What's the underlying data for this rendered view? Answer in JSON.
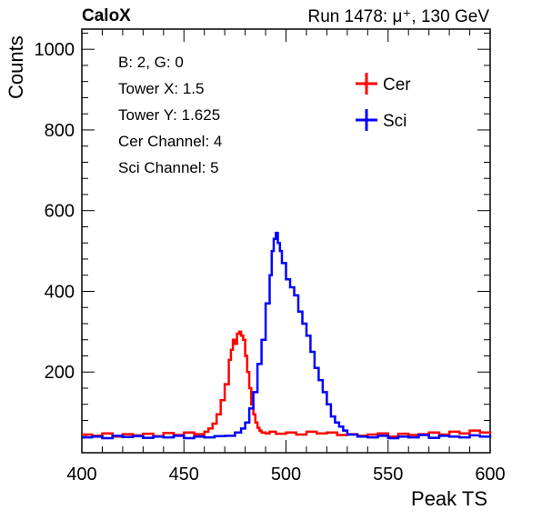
{
  "header": {
    "left": "CaloX",
    "right": "Run 1478:   μ⁺, 130 GeV"
  },
  "info_lines": [
    "B: 2, G: 0",
    "Tower X: 1.5",
    "Tower Y: 1.625",
    "Cer Channel: 4",
    "Sci Channel: 5"
  ],
  "colors": {
    "cer": "#ff0000",
    "sci": "#0000ff"
  },
  "chart_data": {
    "type": "line",
    "title": "",
    "xlabel": "Peak TS",
    "ylabel": "Counts",
    "xlim": [
      400,
      600
    ],
    "ylim": [
      0,
      1050
    ],
    "xticks": [
      400,
      450,
      500,
      550,
      600
    ],
    "yticks": [
      200,
      400,
      600,
      800,
      1000
    ],
    "grid": false,
    "legend": "top-right",
    "series": [
      {
        "name": "Cer",
        "x": [
          400,
          405,
          410,
          415,
          420,
          425,
          430,
          435,
          440,
          445,
          450,
          455,
          460,
          462,
          464,
          466,
          468,
          470,
          472,
          473,
          474,
          475,
          476,
          477,
          478,
          479,
          480,
          481,
          482,
          483,
          484,
          485,
          486,
          487,
          488,
          490,
          492,
          495,
          500,
          505,
          510,
          515,
          520,
          525,
          530,
          535,
          540,
          545,
          550,
          555,
          560,
          565,
          570,
          575,
          580,
          585,
          590,
          595,
          600
        ],
        "y": [
          45,
          42,
          48,
          40,
          46,
          43,
          47,
          41,
          49,
          44,
          50,
          46,
          52,
          60,
          72,
          95,
          130,
          170,
          230,
          255,
          280,
          270,
          295,
          300,
          290,
          280,
          240,
          200,
          160,
          120,
          95,
          75,
          62,
          55,
          50,
          48,
          52,
          47,
          50,
          45,
          52,
          48,
          50,
          44,
          46,
          42,
          45,
          48,
          40,
          47,
          44,
          46,
          50,
          45,
          52,
          48,
          55,
          50,
          52
        ]
      },
      {
        "name": "Sci",
        "x": [
          400,
          405,
          410,
          415,
          420,
          425,
          430,
          435,
          440,
          445,
          450,
          455,
          460,
          465,
          470,
          475,
          478,
          480,
          482,
          484,
          486,
          488,
          490,
          492,
          493,
          494,
          495,
          496,
          497,
          498,
          500,
          502,
          504,
          506,
          508,
          510,
          512,
          514,
          516,
          518,
          520,
          522,
          524,
          526,
          528,
          530,
          535,
          540,
          545,
          550,
          555,
          560,
          565,
          570,
          575,
          580,
          585,
          590,
          595,
          600
        ],
        "y": [
          38,
          40,
          36,
          42,
          39,
          41,
          37,
          40,
          38,
          42,
          36,
          40,
          38,
          41,
          42,
          50,
          60,
          75,
          110,
          150,
          220,
          280,
          370,
          440,
          500,
          530,
          545,
          520,
          500,
          470,
          430,
          410,
          390,
          350,
          320,
          290,
          250,
          210,
          180,
          150,
          120,
          90,
          75,
          65,
          55,
          45,
          40,
          38,
          42,
          36,
          40,
          38,
          44,
          37,
          42,
          40,
          38,
          43,
          40,
          44
        ]
      }
    ]
  }
}
